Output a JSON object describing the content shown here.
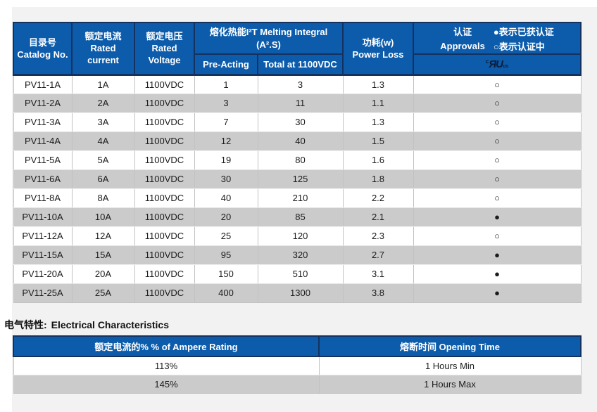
{
  "colors": {
    "header_blue": "#0d5cab",
    "header_border_navy": "#14325f",
    "row_gray": "#cbcbcb",
    "page_bg": "#f2f2f2"
  },
  "spec_table": {
    "headers": {
      "catalog": "目录号\nCatalog No.",
      "current": "额定电流\nRated\ncurrent",
      "voltage": "额定电压\nRated\nVoltage",
      "melting_group": "熔化热能I²T Melting  Integral\n(A².S)",
      "pre_acting": "Pre-Acting",
      "total": "Total at 1100VDC",
      "power": "功耗(w)\nPower Loss",
      "approvals_cn": "认证",
      "approvals_en": "Approvals",
      "legend_certified": "●表示已获认证",
      "legend_pending": "○表示认证中",
      "ul_mark_c": "c",
      "ul_mark_ru": "ЯU",
      "ul_mark_us": "us"
    },
    "rows": [
      {
        "catalog": "PV11-1A",
        "current": "1A",
        "voltage": "1100VDC",
        "pre_acting": "1",
        "total": "3",
        "power_loss": "1.3",
        "approval": "○"
      },
      {
        "catalog": "PV11-2A",
        "current": "2A",
        "voltage": "1100VDC",
        "pre_acting": "3",
        "total": "11",
        "power_loss": "1.1",
        "approval": "○"
      },
      {
        "catalog": "PV11-3A",
        "current": "3A",
        "voltage": "1100VDC",
        "pre_acting": "7",
        "total": "30",
        "power_loss": "1.3",
        "approval": "○"
      },
      {
        "catalog": "PV11-4A",
        "current": "4A",
        "voltage": "1100VDC",
        "pre_acting": "12",
        "total": "40",
        "power_loss": "1.5",
        "approval": "○"
      },
      {
        "catalog": "PV11-5A",
        "current": "5A",
        "voltage": "1100VDC",
        "pre_acting": "19",
        "total": "80",
        "power_loss": "1.6",
        "approval": "○"
      },
      {
        "catalog": "PV11-6A",
        "current": "6A",
        "voltage": "1100VDC",
        "pre_acting": "30",
        "total": "125",
        "power_loss": "1.8",
        "approval": "○"
      },
      {
        "catalog": "PV11-8A",
        "current": "8A",
        "voltage": "1100VDC",
        "pre_acting": "40",
        "total": "210",
        "power_loss": "2.2",
        "approval": "○"
      },
      {
        "catalog": "PV11-10A",
        "current": "10A",
        "voltage": "1100VDC",
        "pre_acting": "20",
        "total": "85",
        "power_loss": "2.1",
        "approval": "●"
      },
      {
        "catalog": "PV11-12A",
        "current": "12A",
        "voltage": "1100VDC",
        "pre_acting": "25",
        "total": "120",
        "power_loss": "2.3",
        "approval": "○"
      },
      {
        "catalog": "PV11-15A",
        "current": "15A",
        "voltage": "1100VDC",
        "pre_acting": "95",
        "total": "320",
        "power_loss": "2.7",
        "approval": "●"
      },
      {
        "catalog": "PV11-20A",
        "current": "20A",
        "voltage": "1100VDC",
        "pre_acting": "150",
        "total": "510",
        "power_loss": "3.1",
        "approval": "●"
      },
      {
        "catalog": "PV11-25A",
        "current": "25A",
        "voltage": "1100VDC",
        "pre_acting": "400",
        "total": "1300",
        "power_loss": "3.8",
        "approval": "●"
      }
    ]
  },
  "section_title": {
    "cn": "电气特性:",
    "en": "Electrical Characteristics"
  },
  "electrical_table": {
    "headers": {
      "ampere_rating": "额定电流的%  % of Ampere Rating",
      "opening_time": "熔断时间  Opening Time"
    },
    "rows": [
      {
        "percent": "113%",
        "time": "1 Hours Min"
      },
      {
        "percent": "145%",
        "time": "1 Hours Max"
      }
    ]
  }
}
